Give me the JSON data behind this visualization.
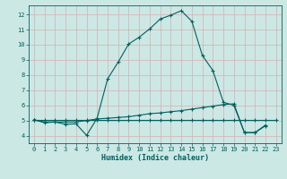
{
  "xlabel": "Humidex (Indice chaleur)",
  "bg_color": "#cce8e4",
  "grid_color": "#d4b8b8",
  "line_color": "#006060",
  "xlim": [
    -0.5,
    23.5
  ],
  "ylim": [
    3.5,
    12.6
  ],
  "xticks": [
    0,
    1,
    2,
    3,
    4,
    5,
    6,
    7,
    8,
    9,
    10,
    11,
    12,
    13,
    14,
    15,
    16,
    17,
    18,
    19,
    20,
    21,
    22,
    23
  ],
  "yticks": [
    4,
    5,
    6,
    7,
    8,
    9,
    10,
    11,
    12
  ],
  "line1_x": [
    0,
    1,
    2,
    3,
    4,
    5,
    6,
    7,
    8,
    9,
    10,
    11,
    12,
    13,
    14,
    15,
    16,
    17,
    18,
    19,
    20,
    21,
    22
  ],
  "line1_y": [
    5.05,
    4.85,
    4.9,
    4.75,
    4.78,
    4.02,
    5.15,
    7.75,
    8.85,
    10.05,
    10.5,
    11.05,
    11.7,
    11.95,
    12.25,
    11.55,
    9.3,
    8.3,
    6.2,
    6.0,
    4.2,
    4.2,
    4.7
  ],
  "line2_x": [
    0,
    1,
    2,
    3,
    4,
    5,
    6,
    7,
    8,
    9,
    10,
    11,
    12,
    13,
    14,
    15,
    16,
    17,
    18,
    19,
    20,
    21,
    22
  ],
  "line2_y": [
    5.05,
    4.9,
    4.9,
    4.9,
    4.9,
    5.0,
    5.1,
    5.15,
    5.2,
    5.25,
    5.35,
    5.45,
    5.5,
    5.58,
    5.65,
    5.75,
    5.85,
    5.95,
    6.05,
    6.1,
    4.2,
    4.2,
    4.65
  ],
  "line3_x": [
    0,
    1,
    2,
    3,
    4,
    5,
    6,
    7,
    8,
    9,
    10,
    11,
    12,
    13,
    14,
    15,
    16,
    17,
    18,
    19,
    20,
    21,
    22,
    23
  ],
  "line3_y": [
    5.05,
    5.05,
    5.05,
    5.05,
    5.05,
    5.05,
    5.05,
    5.05,
    5.05,
    5.05,
    5.05,
    5.05,
    5.05,
    5.05,
    5.05,
    5.05,
    5.05,
    5.05,
    5.05,
    5.05,
    5.05,
    5.05,
    5.05,
    5.05
  ]
}
